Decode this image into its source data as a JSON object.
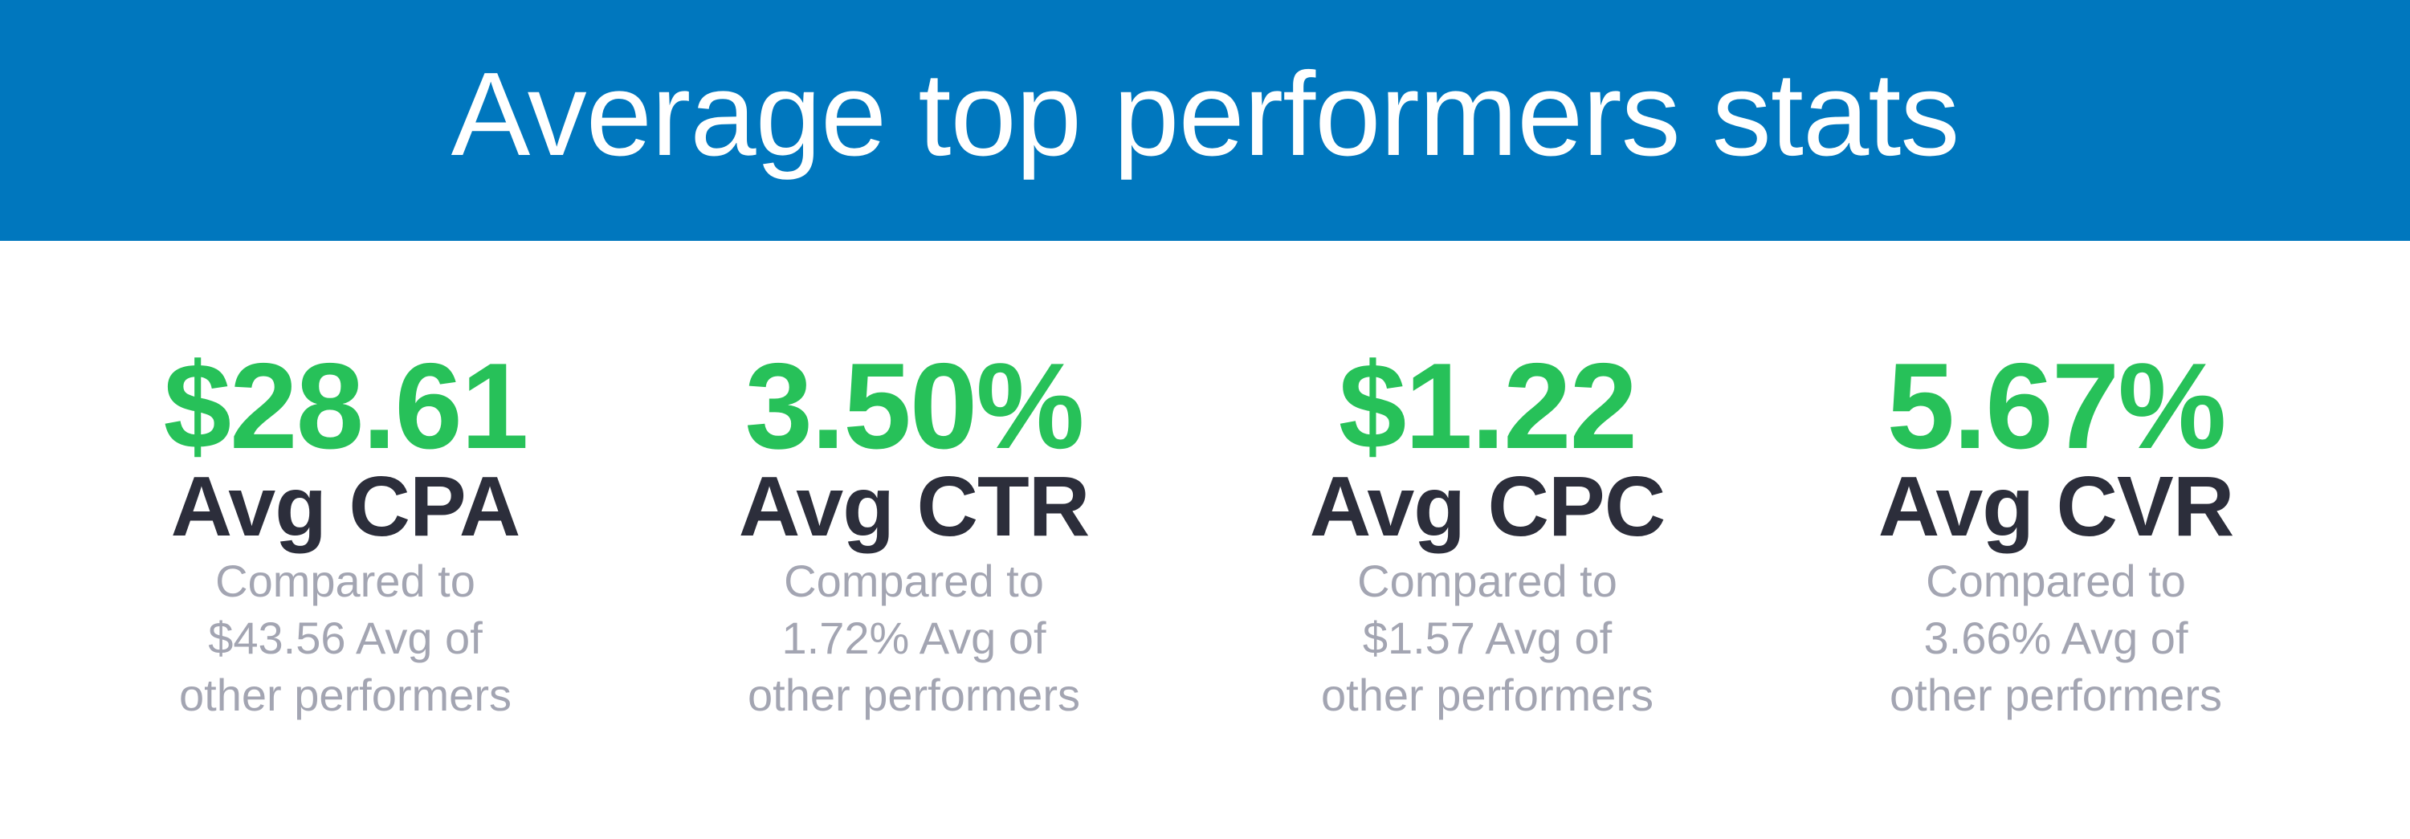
{
  "header": {
    "title": "Average top performers stats",
    "background_color": "#0077be"
  },
  "colors": {
    "value": "#27c159",
    "label": "#2c2e3b",
    "comparison": "#a3a5b2"
  },
  "stats": [
    {
      "value": "$28.61",
      "label": "Avg CPA",
      "comparison_lines": [
        "Compared to",
        "$43.56 Avg of",
        "other performers"
      ]
    },
    {
      "value": "3.50%",
      "label": "Avg CTR",
      "comparison_lines": [
        "Compared to",
        "1.72% Avg of",
        "other performers"
      ]
    },
    {
      "value": "$1.22",
      "label": "Avg CPC",
      "comparison_lines": [
        "Compared to",
        "$1.57 Avg of",
        "other performers"
      ]
    },
    {
      "value": "5.67%",
      "label": "Avg CVR",
      "comparison_lines": [
        "Compared to",
        "3.66% Avg of",
        "other performers"
      ]
    }
  ]
}
